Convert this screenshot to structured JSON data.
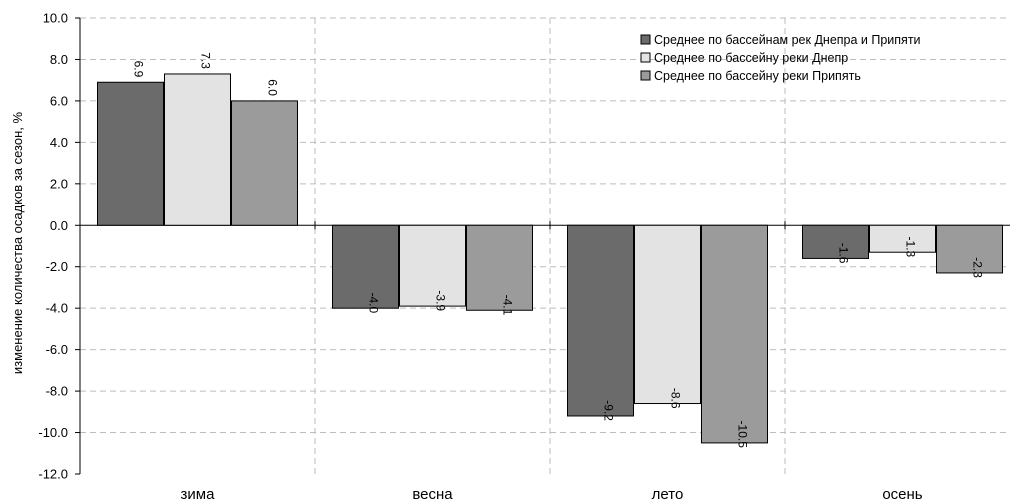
{
  "chart_data": {
    "type": "bar",
    "title": "",
    "xlabel": "",
    "ylabel": "изменение количества осадков за сезон, %",
    "ylim": [
      -12.0,
      10.0
    ],
    "yticks": [
      "-12.0",
      "-10.0",
      "-8.0",
      "-6.0",
      "-4.0",
      "-2.0",
      "0.0",
      "2.0",
      "4.0",
      "6.0",
      "8.0",
      "10.0"
    ],
    "categories": [
      "зима",
      "весна",
      "лето",
      "осень"
    ],
    "series": [
      {
        "name": "Среднее по бассейнам рек Днепра и Припяти",
        "color": "#6b6b6b",
        "values": [
          6.9,
          -4.0,
          -9.2,
          -1.6
        ],
        "labels": [
          "6.9",
          "-4.0",
          "-9.2",
          "-1.6"
        ]
      },
      {
        "name": "Среднее по бассейну реки Днепр",
        "color": "#e3e3e3",
        "values": [
          7.3,
          -3.9,
          -8.6,
          -1.3
        ],
        "labels": [
          "7.3",
          "-3.9",
          "-8.6",
          "-1.3"
        ]
      },
      {
        "name": "Среднее по бассейну реки Припять",
        "color": "#9b9b9b",
        "values": [
          6.0,
          -4.1,
          -10.5,
          -2.3
        ],
        "labels": [
          "6.0",
          "-4.1",
          "-10.5",
          "-2.3"
        ]
      }
    ],
    "grid": true,
    "legend_position": "top-right"
  }
}
